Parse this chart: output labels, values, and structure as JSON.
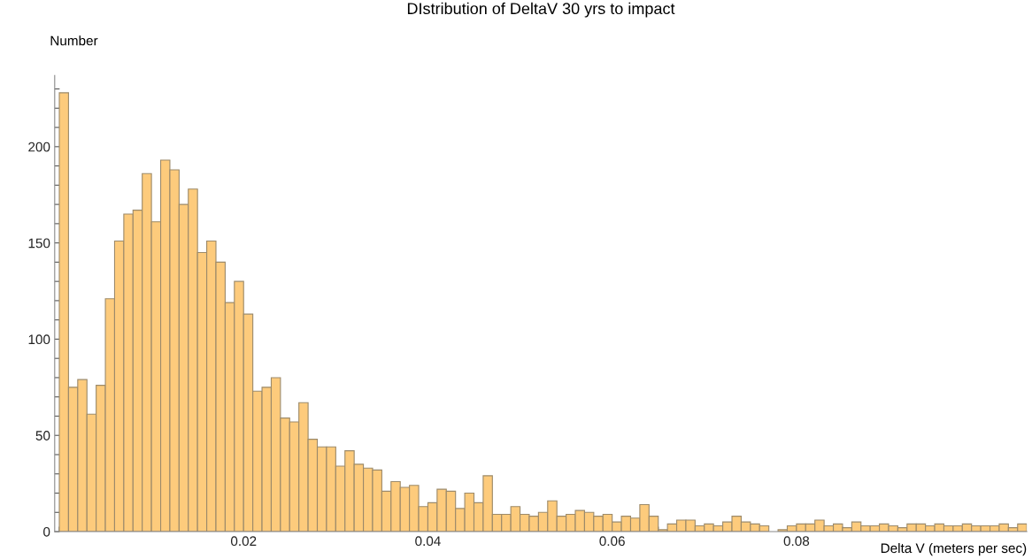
{
  "chart_data": {
    "type": "histogram",
    "title": "DIstribution of DeltaV 30 yrs to impact",
    "xlabel": "Delta V (meters per sec)",
    "ylabel": "Number",
    "bins": [
      0,
      0.001,
      0.002,
      0.003,
      0.004,
      0.005,
      0.006,
      0.007,
      0.008,
      0.009,
      0.01,
      0.011,
      0.012,
      0.013,
      0.014,
      0.015,
      0.016,
      0.017,
      0.018,
      0.019,
      0.02,
      0.021,
      0.022,
      0.023,
      0.024,
      0.025,
      0.026,
      0.027,
      0.028,
      0.029,
      0.03,
      0.031,
      0.032,
      0.033,
      0.034,
      0.035,
      0.036,
      0.037,
      0.038,
      0.039,
      0.04,
      0.041,
      0.042,
      0.043,
      0.044,
      0.045,
      0.046,
      0.047,
      0.048,
      0.049,
      0.05,
      0.051,
      0.052,
      0.053,
      0.054,
      0.055,
      0.056,
      0.057,
      0.058,
      0.059,
      0.06,
      0.061,
      0.062,
      0.063,
      0.064,
      0.065,
      0.066,
      0.067,
      0.068,
      0.069,
      0.07,
      0.071,
      0.072,
      0.073,
      0.074,
      0.075,
      0.076,
      0.077,
      0.078,
      0.079,
      0.08,
      0.081,
      0.082,
      0.083,
      0.084,
      0.085,
      0.086,
      0.087,
      0.088,
      0.089,
      0.09,
      0.091,
      0.092,
      0.093,
      0.094,
      0.095,
      0.096,
      0.097,
      0.098,
      0.099,
      0.1,
      0.101,
      0.102,
      0.103,
      0.104,
      0.105
    ],
    "values": [
      228,
      75,
      79,
      61,
      76,
      121,
      151,
      165,
      167,
      186,
      161,
      193,
      188,
      170,
      178,
      145,
      151,
      140,
      119,
      130,
      113,
      73,
      75,
      80,
      59,
      57,
      67,
      48,
      44,
      44,
      34,
      42,
      35,
      33,
      32,
      21,
      26,
      23,
      24,
      13,
      15,
      22,
      21,
      12,
      20,
      15,
      29,
      9,
      9,
      13,
      9,
      8,
      10,
      16,
      8,
      9,
      11,
      10,
      8,
      9,
      5,
      8,
      7,
      14,
      8,
      1,
      4,
      6,
      6,
      3,
      4,
      3,
      5,
      8,
      5,
      4,
      3,
      0,
      1,
      3,
      4,
      4,
      6,
      3,
      4,
      2,
      5,
      3,
      3,
      4,
      3,
      2,
      4,
      4,
      3,
      4,
      3,
      3,
      4,
      3,
      3,
      3,
      4,
      2,
      4
    ],
    "color": "#fdcb7c",
    "xlim": [
      -0.0005,
      0.105
    ],
    "xticks": [
      {
        "value": 0,
        "label": null
      },
      {
        "value": 0.005,
        "label": null
      },
      {
        "value": 0.01,
        "label": null
      },
      {
        "value": 0.015,
        "label": null
      },
      {
        "value": 0.02,
        "label": "0.02"
      },
      {
        "value": 0.025,
        "label": null
      },
      {
        "value": 0.03,
        "label": null
      },
      {
        "value": 0.035,
        "label": null
      },
      {
        "value": 0.04,
        "label": "0.04"
      },
      {
        "value": 0.045,
        "label": null
      },
      {
        "value": 0.05,
        "label": null
      },
      {
        "value": 0.055,
        "label": null
      },
      {
        "value": 0.06,
        "label": "0.06"
      },
      {
        "value": 0.065,
        "label": null
      },
      {
        "value": 0.07,
        "label": null
      },
      {
        "value": 0.075,
        "label": null
      },
      {
        "value": 0.08,
        "label": "0.08"
      },
      {
        "value": 0.085,
        "label": null
      },
      {
        "value": 0.09,
        "label": null
      },
      {
        "value": 0.095,
        "label": null
      },
      {
        "value": 0.1,
        "label": null
      }
    ],
    "ylim": [
      0,
      237
    ],
    "yticks": [
      0,
      {
        "value": 10,
        "label": null
      },
      {
        "value": 20,
        "label": null
      },
      {
        "value": 30,
        "label": null
      },
      {
        "value": 40,
        "label": null
      },
      50,
      {
        "value": 60,
        "label": null
      },
      {
        "value": 70,
        "label": null
      },
      {
        "value": 80,
        "label": null
      },
      {
        "value": 90,
        "label": null
      },
      100,
      {
        "value": 110,
        "label": null
      },
      {
        "value": 120,
        "label": null
      },
      {
        "value": 130,
        "label": null
      },
      {
        "value": 140,
        "label": null
      },
      150,
      {
        "value": 160,
        "label": null
      },
      {
        "value": 170,
        "label": null
      },
      {
        "value": 180,
        "label": null
      },
      {
        "value": 190,
        "label": null
      },
      200,
      {
        "value": 210,
        "label": null
      },
      {
        "value": 220,
        "label": null
      },
      {
        "value": 230,
        "label": null
      }
    ],
    "grid": false
  }
}
